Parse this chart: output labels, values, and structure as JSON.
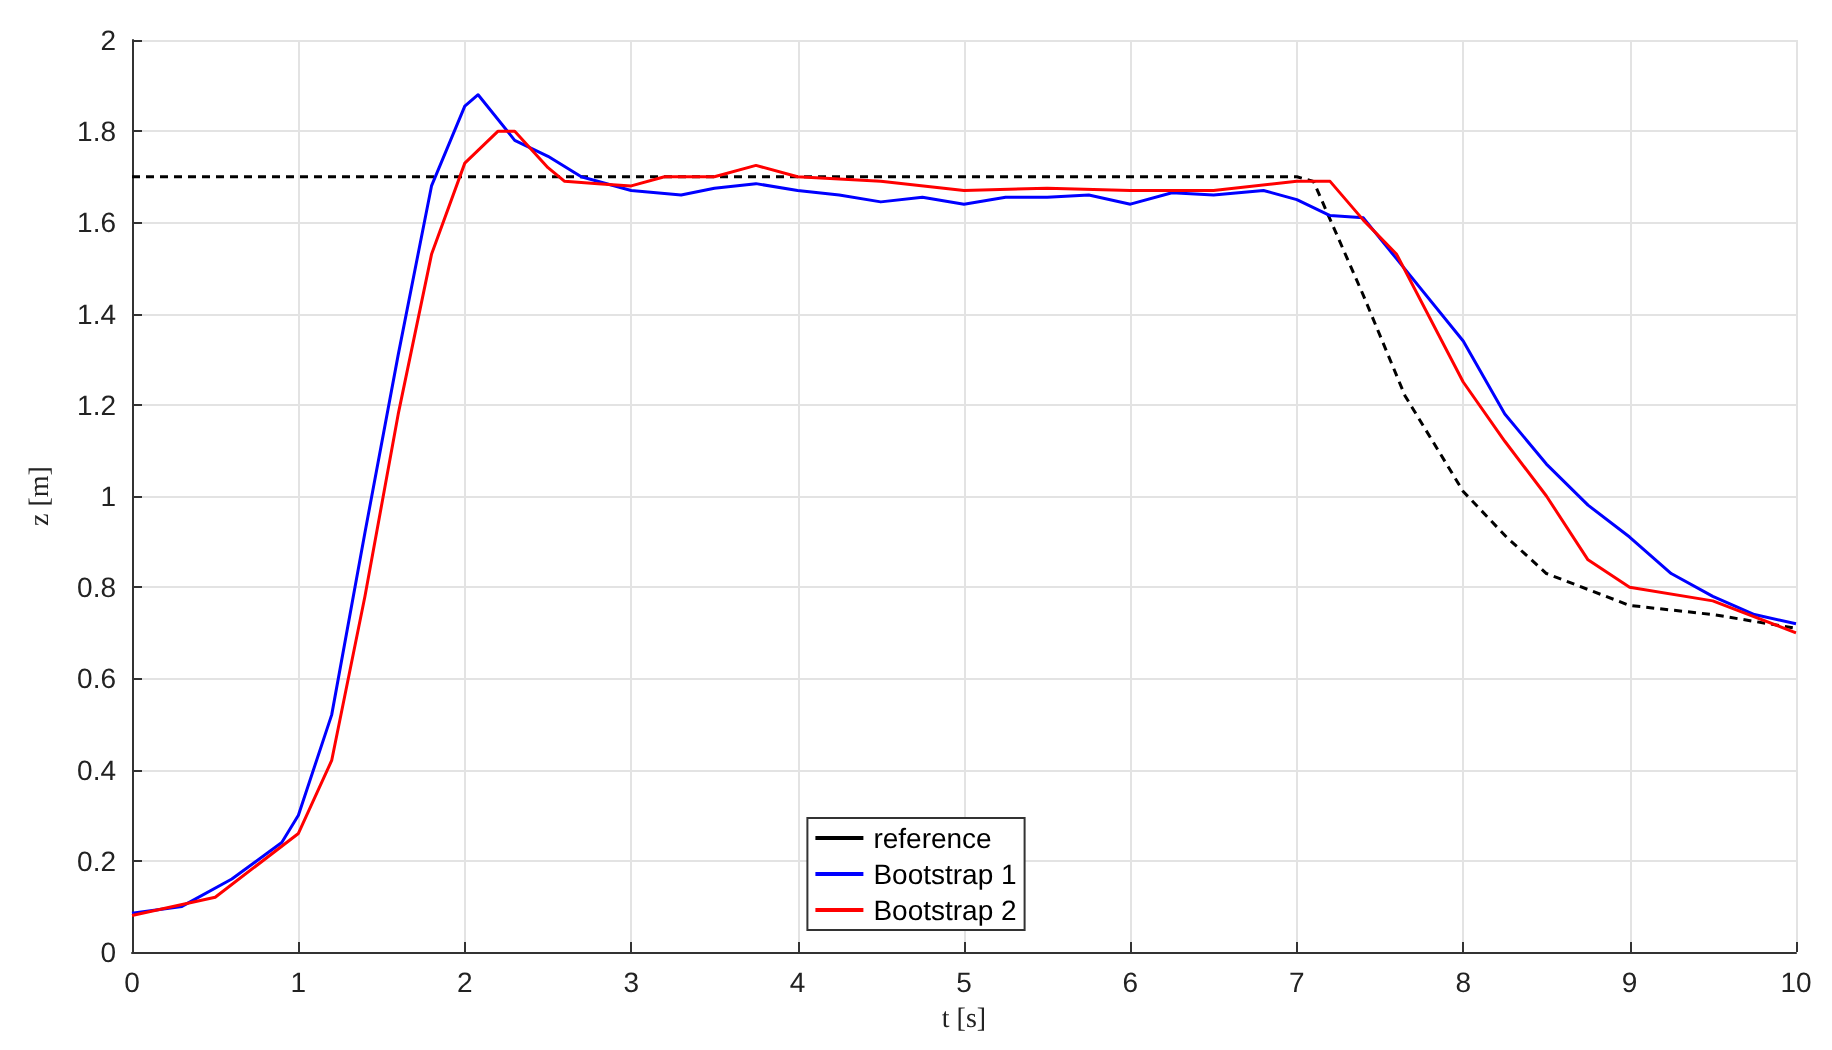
{
  "chart_data": {
    "type": "line",
    "xlabel": "t [s]",
    "ylabel": "z [m]",
    "xlim": [
      0,
      10
    ],
    "ylim": [
      0,
      2
    ],
    "xticks": [
      0,
      1,
      2,
      3,
      4,
      5,
      6,
      7,
      8,
      9,
      10
    ],
    "yticks": [
      0,
      0.2,
      0.4,
      0.6,
      0.8,
      1,
      1.2,
      1.4,
      1.6,
      1.8,
      2
    ],
    "grid": true,
    "legend": "bottom",
    "marker": "none",
    "series": [
      {
        "name": "reference",
        "color": "#000000",
        "line_style": "dashed",
        "x": [
          0,
          7,
          7.1,
          7.4,
          7.65,
          8,
          8.26,
          8.5,
          9,
          9.5,
          10
        ],
        "values": [
          1.7,
          1.7,
          1.69,
          1.44,
          1.22,
          1.01,
          0.91,
          0.83,
          0.76,
          0.74,
          0.71
        ]
      },
      {
        "name": "Bootstrap 1",
        "color": "#0000ff",
        "line_style": "solid",
        "x": [
          0,
          0.3,
          0.6,
          0.9,
          1,
          1.2,
          1.4,
          1.6,
          1.8,
          2,
          2.08,
          2.3,
          2.5,
          2.7,
          3,
          3.3,
          3.5,
          3.75,
          4,
          4.25,
          4.5,
          4.75,
          5,
          5.25,
          5.5,
          5.75,
          6,
          6.25,
          6.5,
          6.8,
          7,
          7.2,
          7.4,
          7.6,
          8,
          8.25,
          8.5,
          8.75,
          9,
          9.25,
          9.5,
          9.75,
          10
        ],
        "values": [
          0.085,
          0.1,
          0.16,
          0.24,
          0.3,
          0.52,
          0.92,
          1.31,
          1.68,
          1.855,
          1.88,
          1.78,
          1.745,
          1.7,
          1.67,
          1.66,
          1.675,
          1.685,
          1.67,
          1.66,
          1.645,
          1.655,
          1.64,
          1.655,
          1.655,
          1.66,
          1.64,
          1.665,
          1.66,
          1.67,
          1.65,
          1.615,
          1.61,
          1.52,
          1.34,
          1.18,
          1.07,
          0.98,
          0.91,
          0.83,
          0.78,
          0.74,
          0.72
        ]
      },
      {
        "name": "Bootstrap 2",
        "color": "#ff0000",
        "line_style": "solid",
        "x": [
          0,
          0.5,
          1,
          1.2,
          1.4,
          1.6,
          1.8,
          2,
          2.2,
          2.3,
          2.5,
          2.6,
          2.8,
          3,
          3.2,
          3.5,
          3.75,
          4,
          4.5,
          5,
          5.5,
          6,
          6.5,
          7,
          7.2,
          7.4,
          7.6,
          8,
          8.25,
          8.5,
          8.75,
          9,
          9.5,
          10
        ],
        "values": [
          0.08,
          0.12,
          0.26,
          0.42,
          0.78,
          1.18,
          1.53,
          1.73,
          1.8,
          1.8,
          1.72,
          1.69,
          1.685,
          1.68,
          1.7,
          1.7,
          1.725,
          1.7,
          1.69,
          1.67,
          1.675,
          1.67,
          1.67,
          1.69,
          1.69,
          1.605,
          1.53,
          1.25,
          1.12,
          1,
          0.86,
          0.8,
          0.77,
          0.7
        ]
      }
    ]
  }
}
